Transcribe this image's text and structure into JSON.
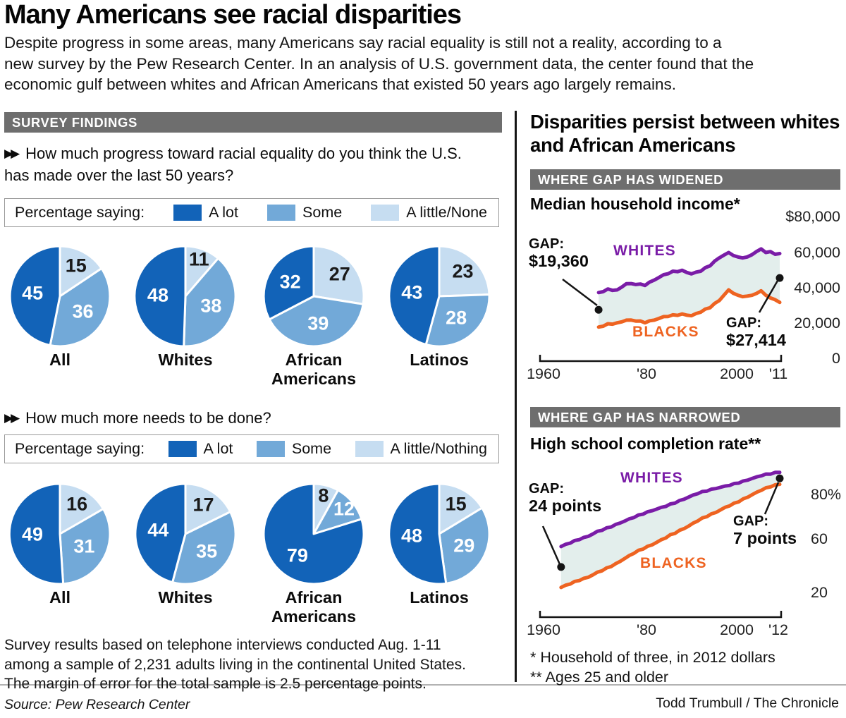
{
  "header": {
    "title": "Many Americans see racial disparities",
    "intro_lines": [
      "Despite progress in some areas, many Americans say racial equality is still not a reality, according to a",
      "new survey by the Pew Research Center. In an analysis of U.S. government data, the center found that the",
      "economic gulf between whites and African Americans that existed 50 years ago largely remains."
    ]
  },
  "survey": {
    "section_label": "SURVEY FINDINGS",
    "q1": {
      "question": "How much progress toward racial equality do you think the U.S. has made over the last 50 years?",
      "legend_label": "Percentage saying:",
      "legend": [
        {
          "label": "A lot",
          "color": "#1263b8"
        },
        {
          "label": "Some",
          "color": "#72a9d8"
        },
        {
          "label": "A little/None",
          "color": "#c6ddf1"
        }
      ]
    },
    "q2": {
      "question": "How much more needs to be done?",
      "legend_label": "Percentage saying:",
      "legend": [
        {
          "label": "A lot",
          "color": "#1263b8"
        },
        {
          "label": "Some",
          "color": "#72a9d8"
        },
        {
          "label": "A little/Nothing",
          "color": "#c6ddf1"
        }
      ]
    },
    "footnote_lines": [
      "Survey results based on telephone interviews conducted Aug. 1-11",
      "among a sample of 2,231 adults living in the continental United States.",
      "The margin of error for the total sample is 2.5 percentage points."
    ],
    "source": "Source: Pew Research Center"
  },
  "right": {
    "heading": "Disparities persist between whites and African Americans",
    "widened_bar": "WHERE GAP HAS WIDENED",
    "narrowed_bar": "WHERE GAP HAS NARROWED",
    "income": {
      "title": "Median household income*",
      "whites_label": "WHITES",
      "blacks_label": "BLACKS",
      "gap_left_label": "GAP:",
      "gap_left_value": "$19,360",
      "gap_right_label": "GAP:",
      "gap_right_value": "$27,414"
    },
    "hs": {
      "title": "High school completion rate**",
      "whites_label": "WHITES",
      "blacks_label": "BLACKS",
      "gap_left_label": "GAP:",
      "gap_left_value": "24 points",
      "gap_right_label": "GAP:",
      "gap_right_value": "7 points"
    },
    "footnotes": [
      "* Household of three, in 2012 dollars",
      "** Ages 25 and older"
    ],
    "credit": "Todd Trumbull / The Chronicle"
  },
  "chart_data": [
    {
      "type": "pie",
      "question": "How much progress toward racial equality do you think the U.S. has made over the last 50 years?",
      "categories": [
        "All",
        "Whites",
        "African Americans",
        "Latinos"
      ],
      "series_labels": [
        "A lot",
        "Some",
        "A little/None"
      ],
      "values": [
        [
          45,
          36,
          15
        ],
        [
          48,
          38,
          11
        ],
        [
          32,
          39,
          27
        ],
        [
          43,
          28,
          23
        ]
      ],
      "colors": {
        "a_lot": "#1263b8",
        "some": "#72a9d8",
        "little": "#c6ddf1"
      }
    },
    {
      "type": "pie",
      "question": "How much more needs to be done?",
      "categories": [
        "All",
        "Whites",
        "African Americans",
        "Latinos"
      ],
      "series_labels": [
        "A lot",
        "Some",
        "A little/Nothing"
      ],
      "values": [
        [
          49,
          31,
          16
        ],
        [
          44,
          35,
          17
        ],
        [
          79,
          12,
          8
        ],
        [
          48,
          29,
          15
        ]
      ],
      "colors": {
        "a_lot": "#1263b8",
        "some": "#72a9d8",
        "little": "#c6ddf1"
      }
    },
    {
      "type": "line",
      "title": "Median household income*",
      "ylabel_unit": "dollars",
      "ylim": [
        0,
        80000
      ],
      "yticks": [
        "$80,000",
        "60,000",
        "40,000",
        "20,000",
        "0"
      ],
      "xticks": [
        "1960",
        "'80",
        "2000",
        "'11"
      ],
      "x": [
        1972,
        1974,
        1976,
        1978,
        1980,
        1982,
        1984,
        1986,
        1988,
        1990,
        1992,
        1994,
        1996,
        1998,
        2000,
        2002,
        2004,
        2006,
        2007,
        2008,
        2009,
        2010,
        2011
      ],
      "series": [
        {
          "name": "WHITES",
          "color": "#7a1ca7",
          "values": [
            38500,
            40500,
            40000,
            43500,
            43000,
            42500,
            45500,
            48500,
            50500,
            51000,
            49000,
            50500,
            53500,
            58000,
            61000,
            58500,
            58500,
            61500,
            63000,
            61000,
            61500,
            60000,
            60400
          ]
        },
        {
          "name": "BLACKS",
          "color": "#ee6321",
          "values": [
            19140,
            21000,
            21500,
            23000,
            22500,
            21500,
            23000,
            25000,
            26000,
            26500,
            25500,
            27500,
            30000,
            34000,
            40000,
            37000,
            36500,
            38000,
            39500,
            37000,
            35500,
            34500,
            32986
          ]
        }
      ],
      "annotations": [
        {
          "text": "GAP: $19,360",
          "at": "start"
        },
        {
          "text": "GAP: $27,414",
          "at": "end"
        }
      ],
      "fill_between_color": "#e3eeec"
    },
    {
      "type": "line",
      "title": "High school completion rate**",
      "ylabel_unit": "percent",
      "ylim": [
        0,
        100
      ],
      "yticks": [
        "80%",
        "60",
        "20"
      ],
      "xticks": [
        "1960",
        "'80",
        "2000",
        "'12"
      ],
      "x": [
        1964,
        1966,
        1968,
        1970,
        1972,
        1974,
        1976,
        1978,
        1980,
        1982,
        1984,
        1986,
        1988,
        1990,
        1992,
        1994,
        1996,
        1998,
        2000,
        2002,
        2004,
        2006,
        2008,
        2010,
        2012
      ],
      "series": [
        {
          "name": "WHITES",
          "color": "#7a1ca7",
          "values": [
            49,
            51,
            53,
            55,
            58,
            60,
            62,
            64,
            66,
            68,
            70,
            72,
            74,
            76,
            78,
            80,
            81.5,
            83,
            84.5,
            86,
            87.5,
            89,
            90.5,
            91.5,
            92.5
          ]
        },
        {
          "name": "BLACKS",
          "color": "#ee6321",
          "values": [
            25,
            27,
            29,
            31,
            34,
            36.5,
            39,
            42,
            45,
            47.5,
            50,
            53,
            56,
            58.5,
            61,
            64,
            66.5,
            69,
            72,
            74.5,
            77,
            79.5,
            82,
            84,
            85.5
          ]
        }
      ],
      "annotations": [
        {
          "text": "GAP: 24 points",
          "at": "start"
        },
        {
          "text": "GAP: 7 points",
          "at": "end"
        }
      ],
      "fill_between_color": "#e3eeec"
    }
  ]
}
